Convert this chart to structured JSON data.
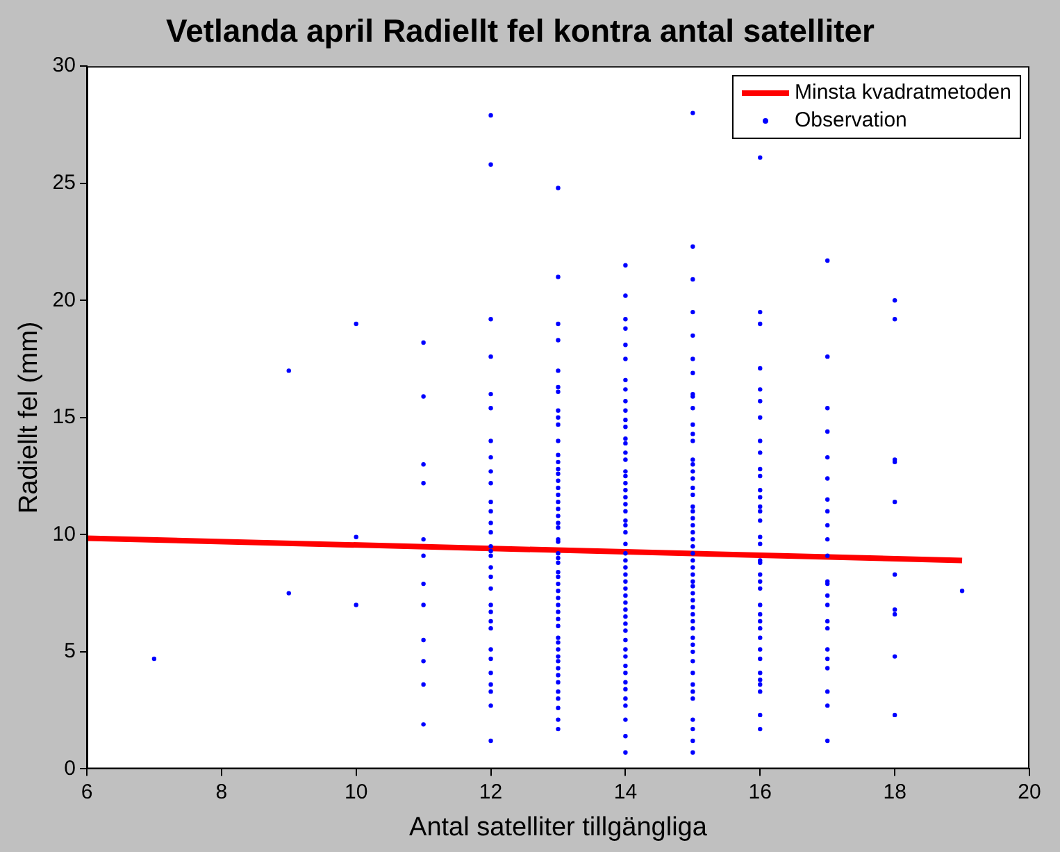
{
  "chart_data": {
    "type": "scatter",
    "title": "Vetlanda april Radiellt fel kontra antal satelliter",
    "xlabel": "Antal satelliter tillgängliga",
    "ylabel": "Radiellt fel (mm)",
    "xlim": [
      6,
      20
    ],
    "xticks": [
      6,
      8,
      10,
      12,
      14,
      16,
      18,
      20
    ],
    "ylim": [
      0,
      30
    ],
    "yticks": [
      0,
      5,
      10,
      15,
      20,
      25,
      30
    ],
    "legend": "top right",
    "series": [
      {
        "name": "Minsta kvadratmetoden",
        "type": "line",
        "marker": "none",
        "color": "#ff0000",
        "x": [
          6,
          19
        ],
        "values": [
          9.85,
          8.9
        ]
      },
      {
        "name": "Observation",
        "marker": "circle",
        "color": "#0000ff",
        "x": [
          7,
          9,
          9,
          10,
          10,
          10,
          11,
          11,
          11,
          11,
          11,
          11,
          11,
          11,
          11,
          11,
          11,
          11,
          12,
          12,
          12,
          12,
          12,
          12,
          12,
          12,
          12,
          12,
          12,
          12,
          12,
          12,
          12,
          12,
          12,
          12,
          12,
          12,
          12,
          12,
          12,
          12,
          12,
          12,
          12,
          12,
          12,
          12,
          12,
          13,
          13,
          13,
          13,
          13,
          13,
          13,
          13,
          13,
          13,
          13,
          13,
          13,
          13,
          13,
          13,
          13,
          13,
          13,
          13,
          13,
          13,
          13,
          13,
          13,
          13,
          13,
          13,
          13,
          13,
          13,
          13,
          13,
          13,
          13,
          13,
          13,
          13,
          13,
          13,
          13,
          13,
          13,
          13,
          13,
          13,
          13,
          13,
          13,
          13,
          14,
          14,
          14,
          14,
          14,
          14,
          14,
          14,
          14,
          14,
          14,
          14,
          14,
          14,
          14,
          14,
          14,
          14,
          14,
          14,
          14,
          14,
          14,
          14,
          14,
          14,
          14,
          14,
          14,
          14,
          14,
          14,
          14,
          14,
          14,
          14,
          14,
          14,
          14,
          14,
          14,
          14,
          14,
          14,
          14,
          14,
          14,
          14,
          14,
          14,
          14,
          15,
          15,
          15,
          15,
          15,
          15,
          15,
          15,
          15,
          15,
          15,
          15,
          15,
          15,
          15,
          15,
          15,
          15,
          15,
          15,
          15,
          15,
          15,
          15,
          15,
          15,
          15,
          15,
          15,
          15,
          15,
          15,
          15,
          15,
          15,
          15,
          15,
          15,
          15,
          15,
          15,
          15,
          15,
          15,
          15,
          15,
          15,
          15,
          15,
          15,
          16,
          16,
          16,
          16,
          16,
          16,
          16,
          16,
          16,
          16,
          16,
          16,
          16,
          16,
          16,
          16,
          16,
          16,
          16,
          16,
          16,
          16,
          16,
          16,
          16,
          16,
          16,
          16,
          16,
          16,
          16,
          16,
          16,
          16,
          16,
          16,
          17,
          17,
          17,
          17,
          17,
          17,
          17,
          17,
          17,
          17,
          17,
          17,
          17,
          17,
          17,
          17,
          17,
          17,
          17,
          17,
          17,
          17,
          17,
          18,
          18,
          18,
          18,
          18,
          18,
          18,
          18,
          18,
          18,
          19
        ],
        "values": [
          4.7,
          17.0,
          7.5,
          19.0,
          9.9,
          7.0,
          18.2,
          15.9,
          13.0,
          12.2,
          9.8,
          9.1,
          7.9,
          7.0,
          5.5,
          4.6,
          3.6,
          1.9,
          27.9,
          25.8,
          19.2,
          17.6,
          16.0,
          15.4,
          14.0,
          13.3,
          12.7,
          12.2,
          11.4,
          11.0,
          10.5,
          10.1,
          9.5,
          9.3,
          9.1,
          8.6,
          8.2,
          7.7,
          7.0,
          6.7,
          6.3,
          6.0,
          5.1,
          4.7,
          4.1,
          3.6,
          3.3,
          2.7,
          1.2,
          24.8,
          21.0,
          19.0,
          18.3,
          17.0,
          16.3,
          16.1,
          15.3,
          15.0,
          14.7,
          14.0,
          13.4,
          13.1,
          12.8,
          12.6,
          12.3,
          12.0,
          11.7,
          11.4,
          11.1,
          10.8,
          10.5,
          10.3,
          9.8,
          9.7,
          9.2,
          9.0,
          8.8,
          8.4,
          8.2,
          7.9,
          7.6,
          7.3,
          7.0,
          6.7,
          6.4,
          6.1,
          5.6,
          5.4,
          5.1,
          4.8,
          4.6,
          4.3,
          4.0,
          3.7,
          3.3,
          3.0,
          2.6,
          2.1,
          1.7,
          21.5,
          20.2,
          19.2,
          18.8,
          18.1,
          17.5,
          16.6,
          16.2,
          15.7,
          15.3,
          14.9,
          14.6,
          14.1,
          13.9,
          13.5,
          13.2,
          12.7,
          12.5,
          12.2,
          11.9,
          11.6,
          11.3,
          11.0,
          10.6,
          10.4,
          10.1,
          9.6,
          9.2,
          8.9,
          8.6,
          8.3,
          8.0,
          7.7,
          7.4,
          7.1,
          6.8,
          6.5,
          6.2,
          5.9,
          5.5,
          5.1,
          4.8,
          4.4,
          4.1,
          3.7,
          3.4,
          3.0,
          2.7,
          2.1,
          1.4,
          0.7,
          28.0,
          22.3,
          20.9,
          19.5,
          18.5,
          17.5,
          16.9,
          16.0,
          15.9,
          15.4,
          14.7,
          14.3,
          14.0,
          13.2,
          13.0,
          12.7,
          12.4,
          12.0,
          11.7,
          11.2,
          11.0,
          10.7,
          10.4,
          10.1,
          9.8,
          9.5,
          9.2,
          8.9,
          8.6,
          8.3,
          8.0,
          7.8,
          7.5,
          7.2,
          6.9,
          6.6,
          6.3,
          6.0,
          5.6,
          5.3,
          5.0,
          4.6,
          4.1,
          3.6,
          3.3,
          3.0,
          2.1,
          1.7,
          1.2,
          0.7,
          26.1,
          19.5,
          19.0,
          17.1,
          16.2,
          15.7,
          15.0,
          14.0,
          13.5,
          12.8,
          12.5,
          11.9,
          11.6,
          11.2,
          11.0,
          10.6,
          9.9,
          9.6,
          8.9,
          8.8,
          8.3,
          8.0,
          7.7,
          7.0,
          6.6,
          6.3,
          6.0,
          5.6,
          5.1,
          4.7,
          4.1,
          3.8,
          3.6,
          3.3,
          2.3,
          1.7,
          21.7,
          17.6,
          15.4,
          14.4,
          13.3,
          12.4,
          11.5,
          11.0,
          10.4,
          9.8,
          9.1,
          8.0,
          7.9,
          7.4,
          7.0,
          6.3,
          6.0,
          5.1,
          4.7,
          4.3,
          3.3,
          2.7,
          1.2,
          20.0,
          19.2,
          13.2,
          13.1,
          11.4,
          8.3,
          6.8,
          6.6,
          4.8,
          2.3,
          7.6
        ]
      }
    ]
  }
}
